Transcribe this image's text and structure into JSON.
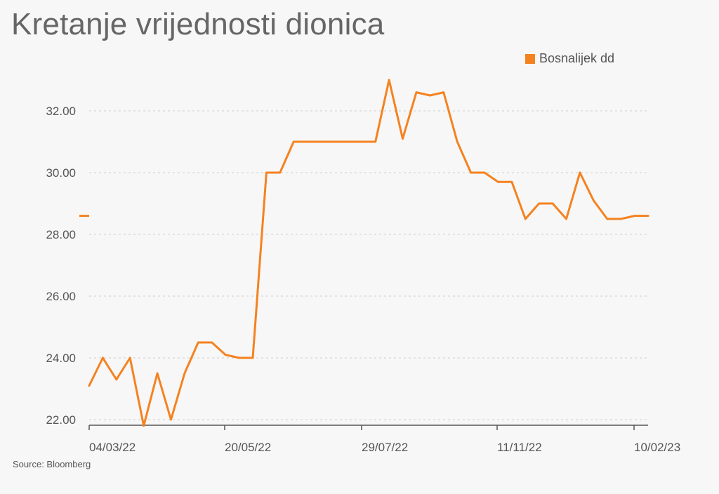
{
  "title": "Kretanje vrijednosti dionica",
  "source": "Source: Bloomberg",
  "colors": {
    "series": "#f58220",
    "grid": "#cccccc",
    "axis": "#555555"
  },
  "chart_data": {
    "type": "line",
    "title": "Kretanje vrijednosti dionica",
    "legend": {
      "entries": [
        "Bosnalijek dd"
      ],
      "position": "top-right"
    },
    "ylim": [
      22,
      33
    ],
    "yticks": [
      22,
      24,
      26,
      28,
      30,
      32
    ],
    "ytick_labels": [
      "22.00",
      "24.00",
      "26.00",
      "28.00",
      "30.00",
      "32.00"
    ],
    "xticks": [
      "04/03/22",
      "20/05/22",
      "29/07/22",
      "11/11/22",
      "10/02/23"
    ],
    "grid": true,
    "last_value_marker": 28.6,
    "series": [
      {
        "name": "Bosnalijek dd",
        "color": "#f58220",
        "x": [
          0,
          1,
          2,
          3,
          4,
          5,
          6,
          7,
          8,
          9,
          10,
          11,
          12,
          13,
          14,
          15,
          16,
          17,
          18,
          19,
          20,
          21,
          22,
          23,
          24,
          25,
          26,
          27,
          28,
          29,
          30,
          31,
          32,
          33,
          34,
          35,
          36,
          37,
          38,
          39,
          40,
          41
        ],
        "values": [
          23.1,
          24.0,
          23.3,
          24.0,
          21.8,
          23.5,
          22.0,
          23.5,
          24.5,
          24.5,
          24.1,
          24.0,
          24.0,
          30.0,
          30.0,
          31.0,
          31.0,
          31.0,
          31.0,
          31.0,
          31.0,
          31.0,
          33.0,
          31.1,
          32.6,
          32.5,
          32.6,
          31.0,
          30.0,
          30.0,
          29.7,
          29.7,
          28.5,
          29.0,
          29.0,
          28.5,
          30.0,
          29.1,
          28.5,
          28.5,
          28.6,
          28.6
        ]
      }
    ]
  }
}
